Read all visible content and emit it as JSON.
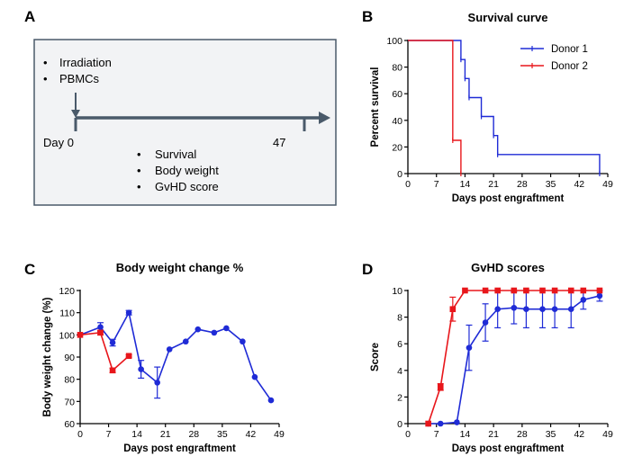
{
  "schematic": {
    "label": "A",
    "treatments": [
      "Irradiation",
      "PBMCs"
    ],
    "start_label": "Day 0",
    "end_label": "47",
    "readouts": [
      "Survival",
      "Body weight",
      "GvHD score"
    ],
    "bullet": "•",
    "colors": {
      "box_border": "#4a5a6a",
      "box_fill": "#f2f3f5",
      "arrow": "#4a5a6a"
    }
  },
  "colors": {
    "donor1": "#1f2bd6",
    "donor2": "#e8161b",
    "axis": "#000000"
  },
  "chart_data": [
    {
      "panel": "B",
      "type": "line",
      "step": true,
      "title": "Survival curve",
      "xlabel": "Days post engraftment",
      "ylabel": "Percent survival",
      "xlim": [
        0,
        49
      ],
      "ylim": [
        0,
        100
      ],
      "xticks": [
        0,
        7,
        14,
        21,
        28,
        35,
        42,
        49
      ],
      "yticks": [
        0,
        20,
        40,
        60,
        80,
        100
      ],
      "legend": "top-right",
      "series": [
        {
          "name": "Donor 1",
          "color": "#1f2bd6",
          "x": [
            0,
            13,
            14,
            15,
            18,
            21,
            22,
            47
          ],
          "y": [
            100,
            85.7,
            71.4,
            57.1,
            42.9,
            28.6,
            14.3,
            0
          ]
        },
        {
          "name": "Donor 2",
          "color": "#e8161b",
          "x": [
            0,
            11,
            13
          ],
          "y": [
            100,
            25,
            0
          ]
        }
      ]
    },
    {
      "panel": "C",
      "type": "line",
      "title": "Body weight change %",
      "xlabel": "Days post engraftment",
      "ylabel": "Body weight change (%)",
      "xlim": [
        0,
        49
      ],
      "ylim": [
        60,
        120
      ],
      "xticks": [
        0,
        7,
        14,
        21,
        28,
        35,
        42,
        49
      ],
      "yticks": [
        60,
        70,
        80,
        90,
        100,
        110,
        120
      ],
      "series": [
        {
          "name": "Donor 1",
          "color": "#1f2bd6",
          "marker": "circle",
          "x": [
            0,
            5,
            8,
            12,
            15,
            19,
            22,
            26,
            29,
            33,
            36,
            40,
            43,
            47
          ],
          "y": [
            100,
            103.5,
            96.5,
            110,
            84.5,
            78.5,
            93.5,
            97,
            102.5,
            101,
            103,
            97,
            81,
            70.5
          ],
          "err": [
            0,
            2,
            1.5,
            1,
            4,
            7,
            0,
            0,
            0,
            0,
            0,
            0,
            0,
            0
          ]
        },
        {
          "name": "Donor 2",
          "color": "#e8161b",
          "marker": "square",
          "x": [
            0,
            5,
            8,
            12
          ],
          "y": [
            100,
            101,
            84,
            90.5
          ],
          "err": [
            0,
            1,
            1,
            0.5
          ]
        }
      ]
    },
    {
      "panel": "D",
      "type": "line",
      "title": "GvHD scores",
      "xlabel": "Days post engraftment",
      "ylabel": "Score",
      "xlim": [
        0,
        49
      ],
      "ylim": [
        0,
        10
      ],
      "xticks": [
        0,
        7,
        14,
        21,
        28,
        35,
        42,
        49
      ],
      "yticks": [
        0,
        2,
        4,
        6,
        8,
        10
      ],
      "series": [
        {
          "name": "Donor 1",
          "color": "#1f2bd6",
          "marker": "circle",
          "x": [
            5,
            8,
            12,
            15,
            19,
            22,
            26,
            29,
            33,
            36,
            40,
            43,
            47
          ],
          "y": [
            0,
            0,
            0.1,
            5.7,
            7.6,
            8.6,
            8.7,
            8.6,
            8.6,
            8.6,
            8.6,
            9.3,
            9.6
          ],
          "err": [
            0,
            0,
            0,
            1.7,
            1.4,
            1.4,
            1.2,
            1.4,
            1.4,
            1.4,
            1.4,
            0.7,
            0.4
          ]
        },
        {
          "name": "Donor 2",
          "color": "#e8161b",
          "marker": "square",
          "x": [
            5,
            8,
            11,
            14,
            19,
            22,
            26,
            29,
            33,
            36,
            40,
            43,
            47
          ],
          "y": [
            0,
            2.75,
            8.6,
            10,
            10,
            10,
            10,
            10,
            10,
            10,
            10,
            10,
            10
          ],
          "err": [
            0,
            0.25,
            0.9,
            0,
            0,
            0,
            0,
            0,
            0,
            0,
            0,
            0,
            0
          ]
        }
      ]
    }
  ]
}
